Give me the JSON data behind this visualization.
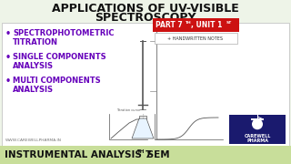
{
  "bg_color": "#eef4e8",
  "footer_bg": "#c8de9a",
  "title_line1": "APPLICATIONS OF UV-VISIBLE",
  "title_line2": "SPECTROSCOPY",
  "title_color": "#111111",
  "bullet_items": [
    [
      "SPECTROPHOTOMETRIC",
      "TITRATION"
    ],
    [
      "SINGLE COMPONENTS",
      "ANALYSIS"
    ],
    [
      "MULTI COMPONENTS",
      "ANALYSIS"
    ]
  ],
  "bullet_color": "#6600bb",
  "part_box_color": "#cc1111",
  "footer_text1": "INSTRUMENTAL ANALYSIS 7",
  "footer_sup": "TH",
  "footer_text2": " SEM",
  "footer_color": "#111111",
  "website_text": "WWW.CAREWELLPHARMA.IN",
  "website_color": "#777777",
  "content_bg": "#ffffff",
  "logo_text1": "CAREWELL",
  "logo_text2": "PHARMA",
  "logo_bg": "#1a1a6e",
  "logo_accent": "#cc2222"
}
